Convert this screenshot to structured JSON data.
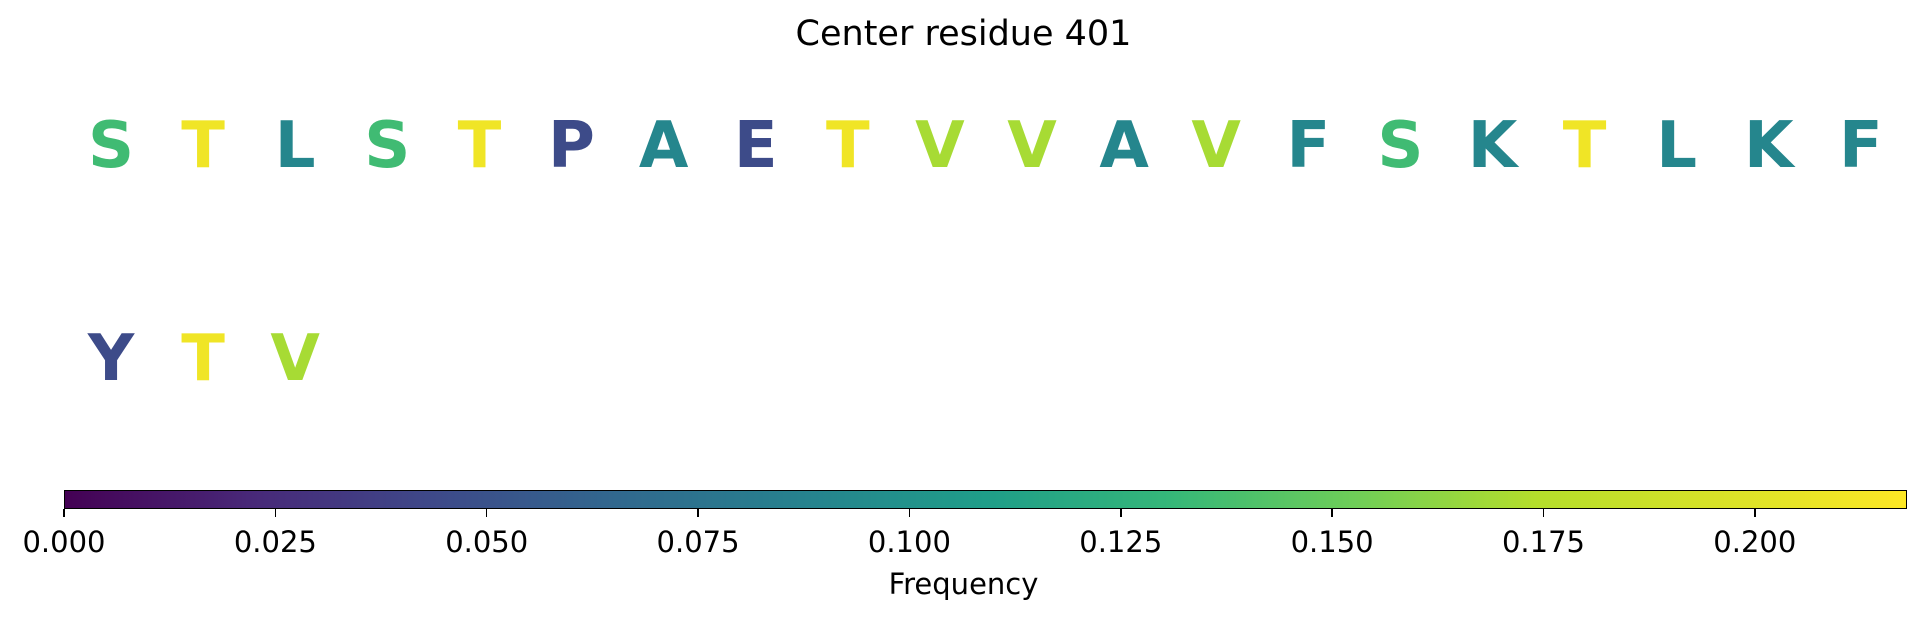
{
  "chart_data": {
    "type": "sequence-logo",
    "title": "Center residue 401",
    "residues": [
      {
        "letter": "S",
        "value": 0.135
      },
      {
        "letter": "T",
        "value": 0.21
      },
      {
        "letter": "L",
        "value": 0.09
      },
      {
        "letter": "S",
        "value": 0.135
      },
      {
        "letter": "T",
        "value": 0.21
      },
      {
        "letter": "P",
        "value": 0.045
      },
      {
        "letter": "A",
        "value": 0.09
      },
      {
        "letter": "E",
        "value": 0.045
      },
      {
        "letter": "T",
        "value": 0.21
      },
      {
        "letter": "V",
        "value": 0.17
      },
      {
        "letter": "V",
        "value": 0.17
      },
      {
        "letter": "A",
        "value": 0.09
      },
      {
        "letter": "V",
        "value": 0.17
      },
      {
        "letter": "F",
        "value": 0.09
      },
      {
        "letter": "S",
        "value": 0.135
      },
      {
        "letter": "K",
        "value": 0.09
      },
      {
        "letter": "T",
        "value": 0.21
      },
      {
        "letter": "L",
        "value": 0.09
      },
      {
        "letter": "K",
        "value": 0.09
      },
      {
        "letter": "F",
        "value": 0.09
      },
      {
        "letter": "Y",
        "value": 0.045
      },
      {
        "letter": "T",
        "value": 0.21
      },
      {
        "letter": "V",
        "value": 0.17
      }
    ],
    "colorbar": {
      "label": "Frequency",
      "range": [
        0,
        0.218
      ],
      "colormap": "viridis",
      "ticks": [
        0,
        0.025,
        0.05,
        0.075,
        0.1,
        0.125,
        0.15,
        0.175,
        0.2
      ],
      "tick_labels": [
        "0.000",
        "0.025",
        "0.050",
        "0.075",
        "0.100",
        "0.125",
        "0.150",
        "0.175",
        "0.200"
      ]
    }
  }
}
